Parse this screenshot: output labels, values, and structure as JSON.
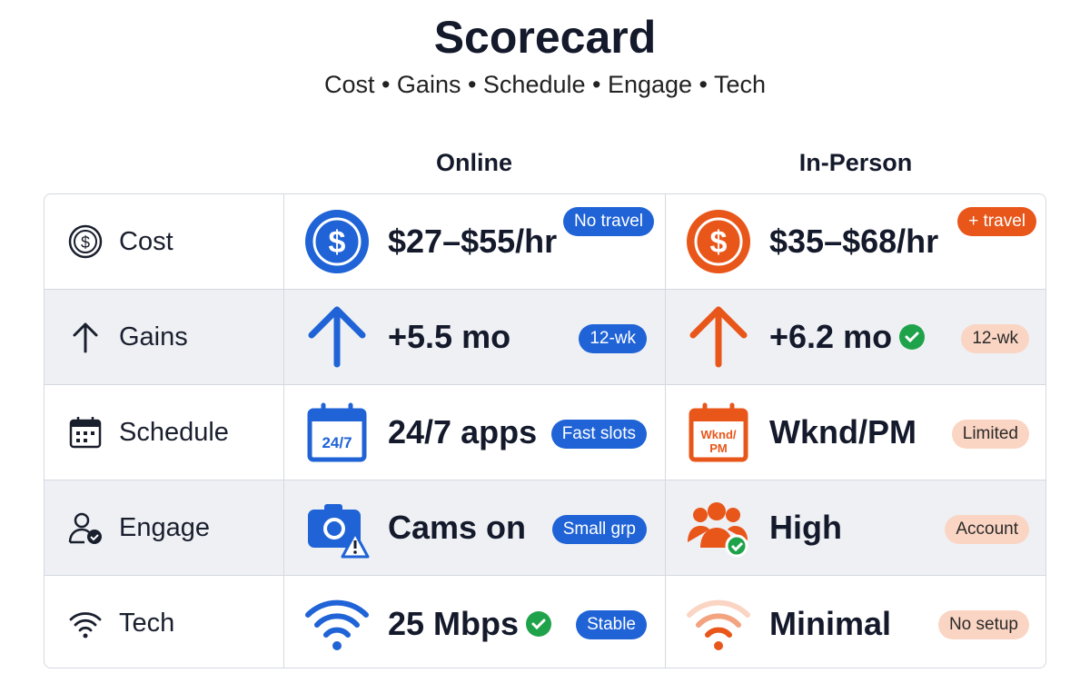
{
  "title": "Scorecard",
  "subtitle": "Cost • Gains • Schedule • Engage • Tech",
  "columns": {
    "online": "Online",
    "in_person": "In-Person"
  },
  "colors": {
    "online": "#1f63d6",
    "in_person": "#e8561a",
    "check": "#1fa34a"
  },
  "rows": [
    {
      "label": "Cost",
      "icon": "dollar-coin-icon",
      "online": {
        "value": "$27–$55/hr",
        "badge": "No travel"
      },
      "in_person": {
        "value": "$35–$68/hr",
        "badge": "+ travel"
      }
    },
    {
      "label": "Gains",
      "icon": "arrow-up-icon",
      "online": {
        "value": "+5.5 mo",
        "badge": "12-wk"
      },
      "in_person": {
        "value": "+6.2 mo",
        "badge": "12-wk",
        "check": true
      }
    },
    {
      "label": "Schedule",
      "icon": "calendar-icon",
      "online": {
        "value": "24/7 apps",
        "badge": "Fast slots",
        "icon_text": "24/7"
      },
      "in_person": {
        "value": "Wknd/PM",
        "badge": "Limited",
        "icon_text": "Wknd/\nPM"
      }
    },
    {
      "label": "Engage",
      "icon": "user-check-icon",
      "online": {
        "value": "Cams on",
        "badge": "Small grp"
      },
      "in_person": {
        "value": "High",
        "badge": "Account"
      }
    },
    {
      "label": "Tech",
      "icon": "wifi-icon",
      "online": {
        "value": "25 Mbps",
        "badge": "Stable",
        "check": true
      },
      "in_person": {
        "value": "Minimal",
        "badge": "No setup"
      }
    }
  ]
}
